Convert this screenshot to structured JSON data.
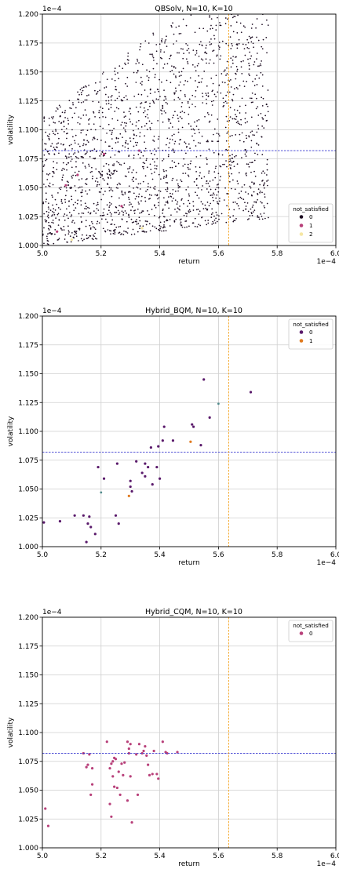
{
  "chart_data": [
    {
      "type": "scatter",
      "title": "QBSolv, N=10, K=10",
      "xlabel": "return",
      "ylabel": "volatility",
      "x_scale_label": "1e−4",
      "y_scale_label": "1e−4",
      "xlim": [
        5.0,
        6.0
      ],
      "ylim": [
        1.0,
        1.2
      ],
      "xticks": [
        "5.0",
        "5.2",
        "5.4",
        "5.6",
        "5.8",
        "6.0"
      ],
      "yticks": [
        "1.000",
        "1.025",
        "1.050",
        "1.075",
        "1.100",
        "1.125",
        "1.150",
        "1.175",
        "1.200"
      ],
      "grid": true,
      "hline": {
        "y": 1.082,
        "color": "#3b3bd1",
        "style": "dashed"
      },
      "vline": {
        "x": 5.635,
        "color": "#f5a623",
        "style": "dashed"
      },
      "legend": {
        "title": "not_satisfied",
        "position": "bottom-right"
      },
      "series": [
        {
          "name": "0",
          "color": "#1a0a1f",
          "cloud": {
            "count": 1900,
            "seed": 7,
            "x_range": [
              5.0,
              5.77
            ],
            "y_min": 1.0,
            "y_max": 1.2
          },
          "values": []
        },
        {
          "name": "1",
          "color": "#b8407a",
          "values": [
            [
              5.08,
              1.052
            ],
            [
              5.12,
              1.061
            ],
            [
              5.21,
              1.079
            ],
            [
              5.27,
              1.034
            ],
            [
              5.33,
              1.082
            ],
            [
              5.05,
              1.012
            ]
          ]
        },
        {
          "name": "2",
          "color": "#f6e7a4",
          "values": [
            [
              5.34,
              1.015
            ],
            [
              5.1,
              1.005
            ]
          ]
        }
      ]
    },
    {
      "type": "scatter",
      "title": "Hybrid_BQM, N=10, K=10",
      "xlabel": "return",
      "ylabel": "volatility",
      "x_scale_label": "1e−4",
      "y_scale_label": "1e−4",
      "xlim": [
        5.0,
        6.0
      ],
      "ylim": [
        1.0,
        1.2
      ],
      "xticks": [
        "5.0",
        "5.2",
        "5.4",
        "5.6",
        "5.8",
        "6.0"
      ],
      "yticks": [
        "1.000",
        "1.025",
        "1.050",
        "1.075",
        "1.100",
        "1.125",
        "1.150",
        "1.175",
        "1.200"
      ],
      "grid": true,
      "hline": {
        "y": 1.082,
        "color": "#3b3bd1",
        "style": "dashed"
      },
      "vline": {
        "x": 5.635,
        "color": "#f5a623",
        "style": "dashed"
      },
      "legend": {
        "title": "not_satisfied",
        "position": "top-right"
      },
      "series": [
        {
          "name": "0",
          "color": "#5a1a6b",
          "values": [
            [
              5.005,
              1.021
            ],
            [
              5.06,
              1.022
            ],
            [
              5.11,
              1.027
            ],
            [
              5.14,
              1.027
            ],
            [
              5.15,
              1.004
            ],
            [
              5.155,
              1.02
            ],
            [
              5.16,
              1.026
            ],
            [
              5.165,
              1.017
            ],
            [
              5.18,
              1.011
            ],
            [
              5.19,
              1.069
            ],
            [
              5.21,
              1.059
            ],
            [
              5.25,
              1.027
            ],
            [
              5.255,
              1.072
            ],
            [
              5.26,
              1.02
            ],
            [
              5.3,
              1.052
            ],
            [
              5.3,
              1.057
            ],
            [
              5.305,
              1.048
            ],
            [
              5.32,
              1.074
            ],
            [
              5.34,
              1.064
            ],
            [
              5.35,
              1.061
            ],
            [
              5.35,
              1.072
            ],
            [
              5.36,
              1.069
            ],
            [
              5.37,
              1.086
            ],
            [
              5.375,
              1.054
            ],
            [
              5.39,
              1.069
            ],
            [
              5.395,
              1.087
            ],
            [
              5.4,
              1.059
            ],
            [
              5.41,
              1.092
            ],
            [
              5.415,
              1.104
            ],
            [
              5.445,
              1.092
            ],
            [
              5.51,
              1.106
            ],
            [
              5.515,
              1.104
            ],
            [
              5.54,
              1.088
            ],
            [
              5.55,
              1.145
            ],
            [
              5.57,
              1.112
            ],
            [
              5.71,
              1.134
            ]
          ]
        },
        {
          "name": "1",
          "color": "#e07a1f",
          "values": [
            [
              5.295,
              1.044
            ],
            [
              5.505,
              1.091
            ]
          ]
        }
      ],
      "other_points": [
        [
          5.2,
          1.047
        ],
        [
          5.6,
          1.124
        ]
      ]
    },
    {
      "type": "scatter",
      "title": "Hybrid_CQM, N=10, K=10",
      "xlabel": "return",
      "ylabel": "volatility",
      "x_scale_label": "1e−4",
      "y_scale_label": "1e−4",
      "xlim": [
        5.0,
        6.0
      ],
      "ylim": [
        1.0,
        1.2
      ],
      "xticks": [
        "5.0",
        "5.2",
        "5.4",
        "5.6",
        "5.8",
        "6.0"
      ],
      "yticks": [
        "1.000",
        "1.025",
        "1.050",
        "1.075",
        "1.100",
        "1.125",
        "1.150",
        "1.175",
        "1.200"
      ],
      "grid": true,
      "hline": {
        "y": 1.082,
        "color": "#3b3bd1",
        "style": "dashed"
      },
      "vline": {
        "x": 5.635,
        "color": "#f5a623",
        "style": "dashed"
      },
      "legend": {
        "title": "not_satisfied",
        "position": "top-right"
      },
      "series": [
        {
          "name": "0",
          "color": "#b8407a",
          "values": [
            [
              5.01,
              1.034
            ],
            [
              5.02,
              1.019
            ],
            [
              5.14,
              1.082
            ],
            [
              5.15,
              1.07
            ],
            [
              5.155,
              1.072
            ],
            [
              5.16,
              1.081
            ],
            [
              5.165,
              1.046
            ],
            [
              5.17,
              1.055
            ],
            [
              5.17,
              1.069
            ],
            [
              5.22,
              1.092
            ],
            [
              5.23,
              1.038
            ],
            [
              5.23,
              1.069
            ],
            [
              5.235,
              1.073
            ],
            [
              5.235,
              1.027
            ],
            [
              5.24,
              1.062
            ],
            [
              5.24,
              1.075
            ],
            [
              5.245,
              1.078
            ],
            [
              5.245,
              1.053
            ],
            [
              5.25,
              1.077
            ],
            [
              5.255,
              1.052
            ],
            [
              5.26,
              1.066
            ],
            [
              5.265,
              1.046
            ],
            [
              5.27,
              1.073
            ],
            [
              5.275,
              1.063
            ],
            [
              5.28,
              1.074
            ],
            [
              5.29,
              1.041
            ],
            [
              5.29,
              1.092
            ],
            [
              5.295,
              1.086
            ],
            [
              5.295,
              1.082
            ],
            [
              5.3,
              1.09
            ],
            [
              5.3,
              1.062
            ],
            [
              5.305,
              1.022
            ],
            [
              5.32,
              1.081
            ],
            [
              5.325,
              1.046
            ],
            [
              5.33,
              1.09
            ],
            [
              5.34,
              1.082
            ],
            [
              5.345,
              1.084
            ],
            [
              5.35,
              1.088
            ],
            [
              5.355,
              1.08
            ],
            [
              5.36,
              1.072
            ],
            [
              5.365,
              1.063
            ],
            [
              5.375,
              1.064
            ],
            [
              5.38,
              1.084
            ],
            [
              5.39,
              1.064
            ],
            [
              5.395,
              1.06
            ],
            [
              5.41,
              1.092
            ],
            [
              5.42,
              1.083
            ],
            [
              5.425,
              1.082
            ],
            [
              5.46,
              1.083
            ]
          ]
        }
      ]
    }
  ]
}
